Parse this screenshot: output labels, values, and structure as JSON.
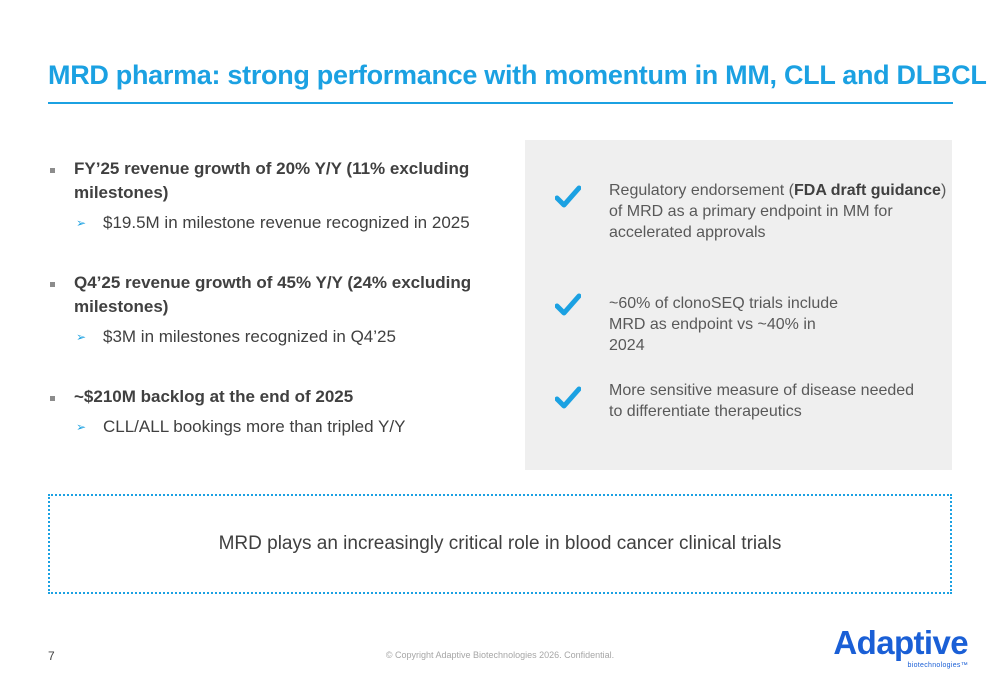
{
  "title": "MRD pharma: strong performance with momentum in MM, CLL and DLBCL",
  "bullets": [
    {
      "main": "FY’25 revenue growth of 20% Y/Y (11% excluding milestones)",
      "sub": "$19.5M in milestone revenue recognized in 2025"
    },
    {
      "main": "Q4’25 revenue growth of 45% Y/Y (24% excluding milestones)",
      "sub": "$3M in milestones recognized in Q4’25"
    },
    {
      "main": "~$210M backlog at the end of 2025",
      "sub": "CLL/ALL bookings more than tripled Y/Y"
    }
  ],
  "checklist": {
    "icon": "checkmark-icon",
    "accent_color": "#1ba1e2",
    "items": [
      {
        "before": "Regulatory endorsement (",
        "bold": "FDA draft guidance",
        "after": ") of MRD as a primary endpoint in MM for accelerated approvals"
      },
      {
        "text": "~60% of clonoSEQ trials include MRD as endpoint vs ~40% in 2024"
      },
      {
        "text": "More sensitive measure of disease needed to differentiate therapeutics"
      }
    ]
  },
  "callout": "MRD plays an increasingly critical role in blood cancer clinical trials",
  "footer": {
    "page_number": "7",
    "copyright": "© Copyright  Adaptive Biotechnologies 2026. Confidential.",
    "logo_word": "Adaptive",
    "logo_sub": "biotechnologies™"
  },
  "colors": {
    "accent": "#1ba1e2",
    "logo_blue": "#1a5fd6",
    "panel_gray": "#efefef"
  }
}
